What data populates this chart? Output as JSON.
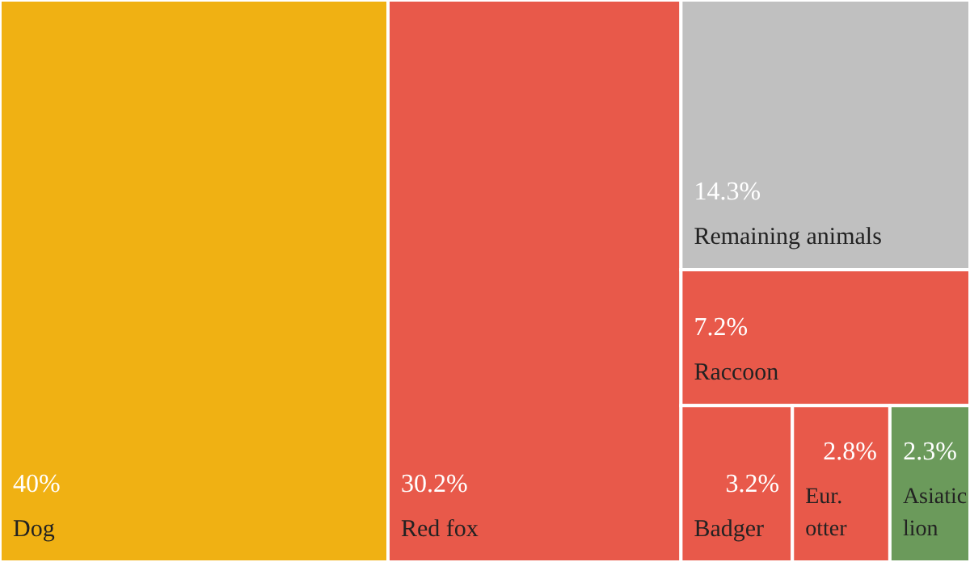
{
  "chart_data": {
    "type": "other",
    "categories": [
      "Dog",
      "Red fox",
      "Remaining animals",
      "Raccoon",
      "Badger",
      "Eur. otter",
      "Asiatic lion"
    ],
    "values": [
      40,
      30.2,
      14.3,
      7.2,
      3.2,
      2.8,
      2.3
    ],
    "value_labels": [
      "40%",
      "30.2%",
      "14.3%",
      "7.2%",
      "3.2%",
      "2.8%",
      "2.3%"
    ],
    "colors": [
      "#f0b113",
      "#e8594a",
      "#c0c0c0",
      "#e8594a",
      "#e8594a",
      "#e8594a",
      "#6b9a5b"
    ]
  }
}
